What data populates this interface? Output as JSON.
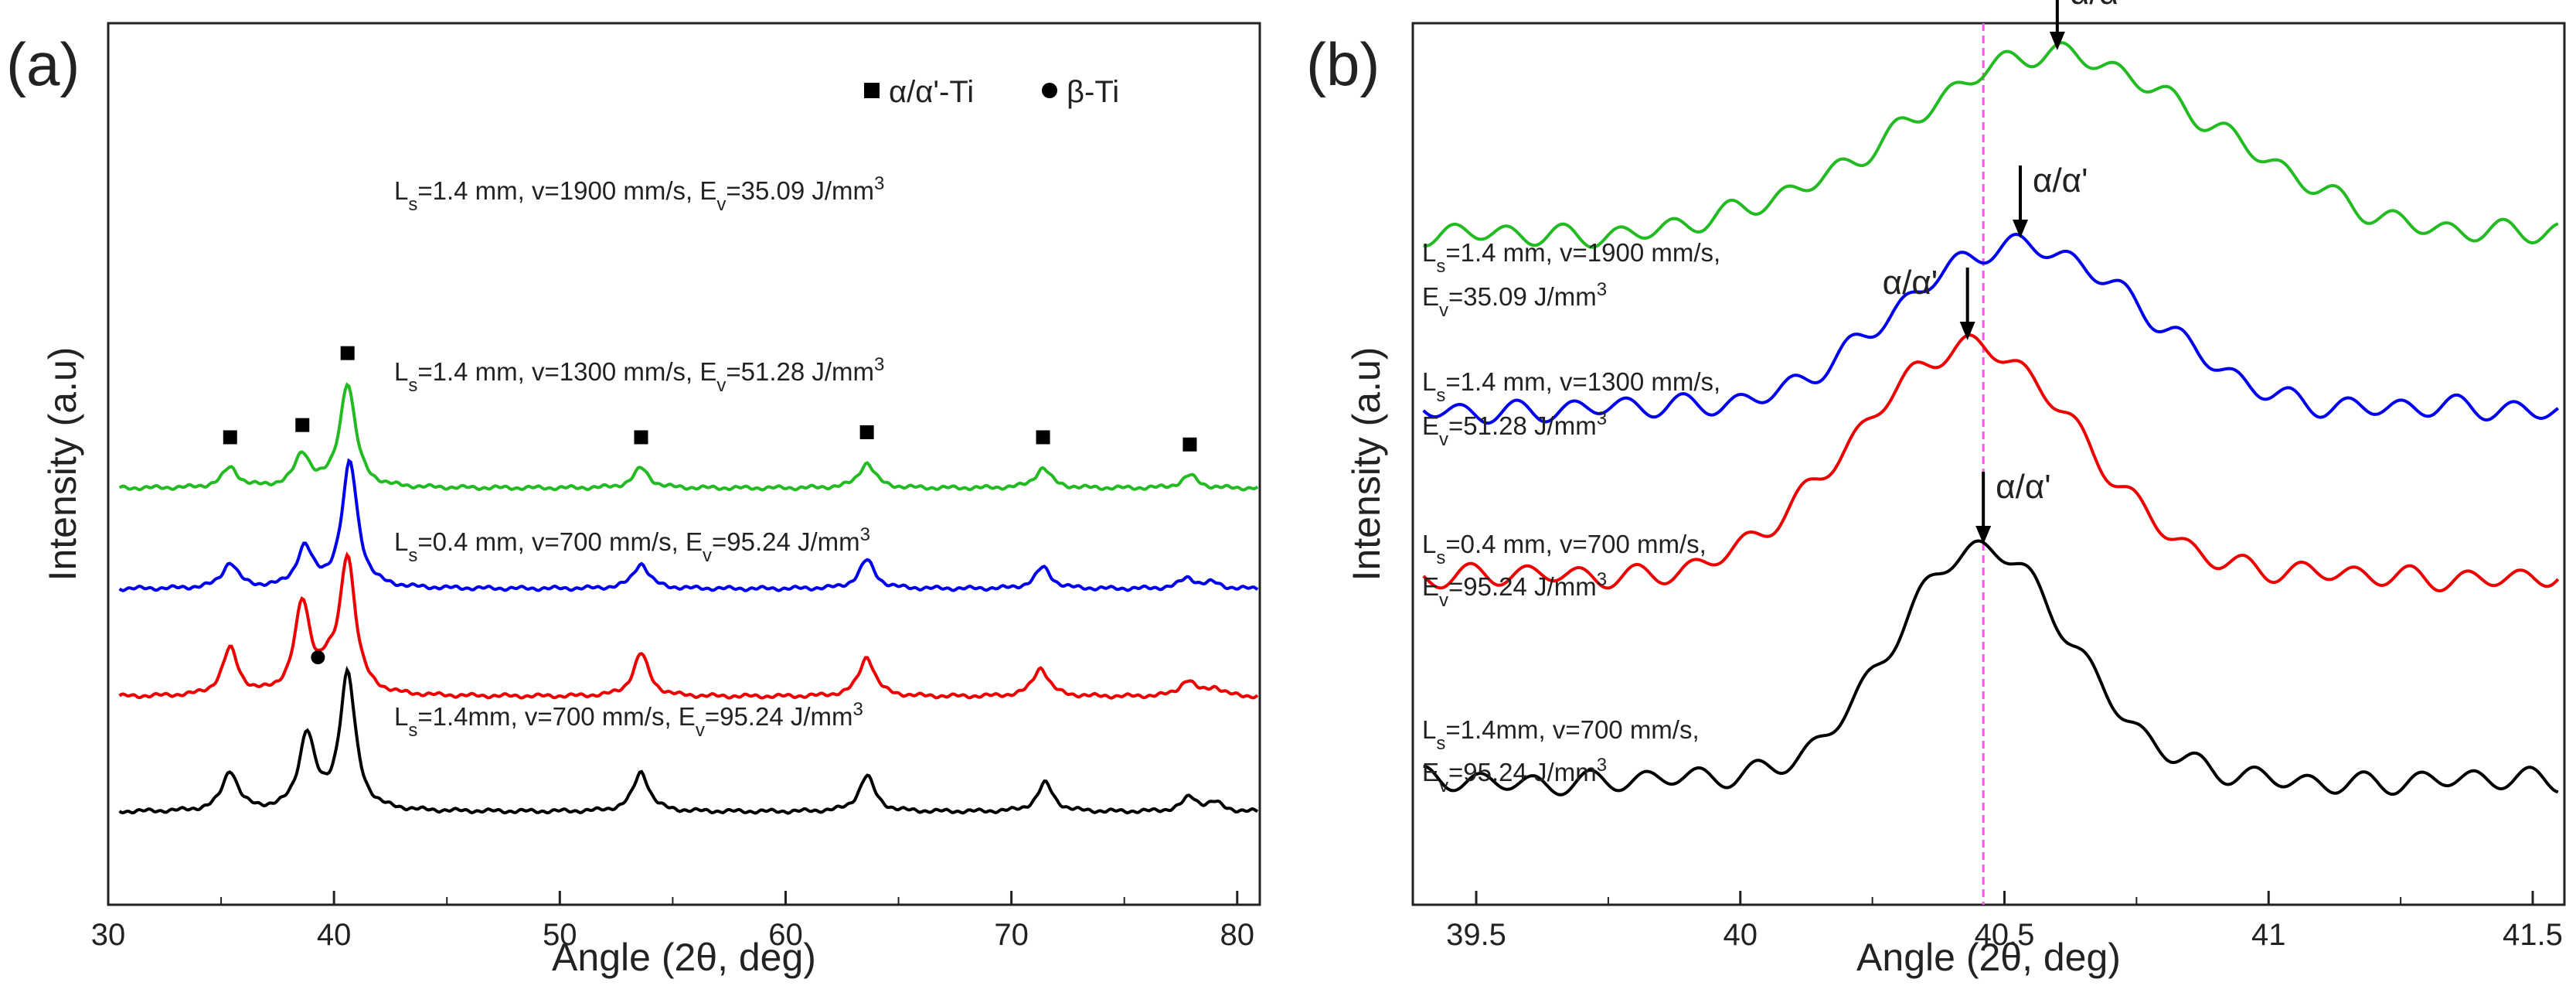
{
  "chart_data": [
    {
      "panel_label": "(a)",
      "type": "line",
      "xlabel": "Angle (2θ, deg)",
      "ylabel": "Intensity (a.u)",
      "xlim": [
        30,
        81
      ],
      "xticks": [
        30,
        40,
        50,
        60,
        70,
        80
      ],
      "grid": false,
      "legend": [
        {
          "marker": "square",
          "label": "α/α'-Ti"
        },
        {
          "marker": "circle",
          "label": "β-Ti"
        }
      ],
      "series": [
        {
          "name": "Ls=1.4mm, v=700 mm/s, Ev=95.24 J/mm3",
          "label_main": "L",
          "label_sub1": "s",
          "label_mid": "=1.4mm, v=700 mm/s, E",
          "label_sub2": "v",
          "label_end": "=95.24 J/mm",
          "label_sup": "3",
          "color": "#000000",
          "baseline": 0.0,
          "peaks": [
            [
              35.4,
              0.55
            ],
            [
              38.8,
              1.05
            ],
            [
              40.6,
              1.9
            ],
            [
              53.6,
              0.55
            ],
            [
              63.6,
              0.5
            ],
            [
              71.5,
              0.4
            ],
            [
              77.9,
              0.2
            ],
            [
              79.0,
              0.12
            ]
          ]
        },
        {
          "name": "Ls=0.4 mm, v=700 mm/s, Ev=95.24 J/mm3",
          "label_main": "L",
          "label_sub1": "s",
          "label_mid": "=0.4 mm, v=700 mm/s, E",
          "label_sub2": "v",
          "label_end": "=95.24 J/mm",
          "label_sup": "3",
          "color": "#ee0000",
          "baseline": 1.6,
          "peaks": [
            [
              35.4,
              0.65
            ],
            [
              38.6,
              1.25
            ],
            [
              39.7,
              0.25
            ],
            [
              40.6,
              1.9
            ],
            [
              53.6,
              0.6
            ],
            [
              63.6,
              0.55
            ],
            [
              71.3,
              0.4
            ],
            [
              77.8,
              0.22
            ],
            [
              79.0,
              0.12
            ]
          ]
        },
        {
          "name": "Ls=1.4 mm, v=1300 mm/s, Ev=51.28 J/mm3",
          "label_main": "L",
          "label_sub1": "s",
          "label_mid": "=1.4 mm, v=1300 mm/s, E",
          "label_sub2": "v",
          "label_end": "=51.28 J/mm",
          "label_sup": "3",
          "color": "#0000ee",
          "baseline": 3.1,
          "peaks": [
            [
              35.4,
              0.35
            ],
            [
              38.7,
              0.55
            ],
            [
              40.7,
              1.75
            ],
            [
              53.6,
              0.35
            ],
            [
              63.6,
              0.4
            ],
            [
              71.4,
              0.3
            ],
            [
              77.8,
              0.15
            ],
            [
              78.9,
              0.08
            ]
          ]
        },
        {
          "name": "Ls=1.4 mm, v=1900 mm/s, Ev=35.09 J/mm3",
          "label_main": "L",
          "label_sub1": "s",
          "label_mid": "=1.4 mm, v=1900 mm/s, E",
          "label_sub2": "v",
          "label_end": "=35.09 J/mm",
          "label_sup": "3",
          "color": "#22bb22",
          "baseline": 4.5,
          "peaks": [
            [
              35.4,
              0.28
            ],
            [
              38.6,
              0.45
            ],
            [
              40.6,
              1.45
            ],
            [
              53.6,
              0.28
            ],
            [
              63.6,
              0.35
            ],
            [
              71.4,
              0.28
            ],
            [
              77.9,
              0.18
            ]
          ]
        }
      ],
      "alpha_markers": [
        [
          35.4,
          4.5
        ],
        [
          38.6,
          4.5
        ],
        [
          40.6,
          4.5
        ],
        [
          53.6,
          4.5
        ],
        [
          63.6,
          4.5
        ],
        [
          71.4,
          4.5
        ],
        [
          77.9,
          4.5
        ]
      ],
      "beta_markers": [
        [
          39.7,
          1.6
        ]
      ]
    },
    {
      "panel_label": "(b)",
      "type": "line",
      "xlabel": "Angle (2θ, deg)",
      "ylabel": "Intensity (a.u)",
      "xlim": [
        39.38,
        41.56
      ],
      "xticks": [
        39.5,
        40,
        40.5,
        41,
        41.5
      ],
      "grid": false,
      "reference_line_x": 40.46,
      "peak_label": "α/α'",
      "series": [
        {
          "name": "Ls=1.4mm, v=700 mm/s, Ev=95.24 J/mm3",
          "label_line1_main": "L",
          "label_line1_sub": "s",
          "label_line1_rest": "=1.4mm, v=700 mm/s,",
          "label_line2_main": "E",
          "label_line2_sub": "v",
          "label_line2_rest": "=95.24 J/mm",
          "label_sup": "3",
          "color": "#000000",
          "baseline": 0.0,
          "peak_x": 40.46,
          "peak_height": 1.0,
          "width": 0.24
        },
        {
          "name": "Ls=0.4 mm, v=700 mm/s, Ev=95.24 J/mm3",
          "label_line1_main": "L",
          "label_line1_sub": "s",
          "label_line1_rest": "=0.4 mm, v=700 mm/s,",
          "label_line2_main": "E",
          "label_line2_sub": "v",
          "label_line2_rest": "=95.24 J/mm",
          "label_sup": "3",
          "color": "#ee0000",
          "baseline": 0.88,
          "peak_x": 40.43,
          "peak_height": 1.0,
          "width": 0.3
        },
        {
          "name": "Ls=1.4 mm, v=1300 mm/s, Ev=51.28 J/mm3",
          "label_line1_main": "L",
          "label_line1_sub": "s",
          "label_line1_rest": "=1.4 mm, v=1300 mm/s,",
          "label_line2_main": "E",
          "label_line2_sub": "v",
          "label_line2_rest": "=51.28 J/mm",
          "label_sup": "3",
          "color": "#0000ee",
          "baseline": 1.6,
          "peak_x": 40.53,
          "peak_height": 0.72,
          "width": 0.32
        },
        {
          "name": "Ls=1.4 mm, v=1900 mm/s, Ev=35.09 J/mm3",
          "label_line1_main": "L",
          "label_line1_sub": "s",
          "label_line1_rest": "=1.4 mm, v=1900 mm/s,",
          "label_line2_main": "E",
          "label_line2_sub": "v",
          "label_line2_rest": "=35.09 J/mm",
          "label_sup": "3",
          "color": "#22bb22",
          "baseline": 2.35,
          "peak_x": 40.6,
          "peak_height": 0.78,
          "width": 0.42
        }
      ]
    }
  ]
}
